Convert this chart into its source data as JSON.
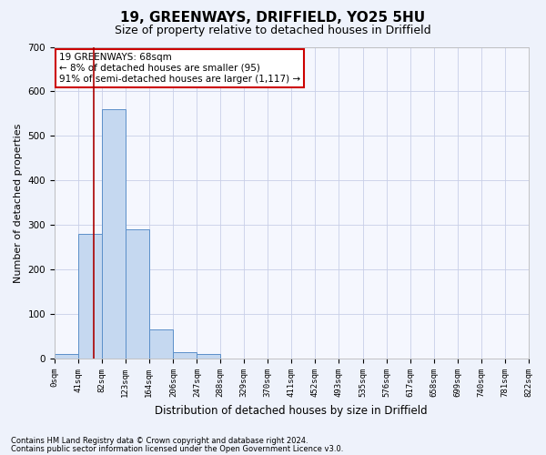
{
  "title1": "19, GREENWAYS, DRIFFIELD, YO25 5HU",
  "title2": "Size of property relative to detached houses in Driffield",
  "xlabel": "Distribution of detached houses by size in Driffield",
  "ylabel": "Number of detached properties",
  "bin_edges": [
    0,
    41,
    82,
    123,
    164,
    206,
    247,
    288,
    329,
    370,
    411,
    452,
    493,
    535,
    576,
    617,
    658,
    699,
    740,
    781,
    822
  ],
  "bar_heights": [
    10,
    280,
    560,
    290,
    65,
    15,
    10,
    0,
    0,
    0,
    0,
    0,
    0,
    0,
    0,
    0,
    0,
    0,
    0,
    0
  ],
  "bar_color": "#c5d8f0",
  "bar_edge_color": "#5b8fc9",
  "red_line_x": 68,
  "ylim": [
    0,
    700
  ],
  "annotation_text": "19 GREENWAYS: 68sqm\n← 8% of detached houses are smaller (95)\n91% of semi-detached houses are larger (1,117) →",
  "annotation_box_color": "#ffffff",
  "annotation_box_edge": "#cc0000",
  "footnote1": "Contains HM Land Registry data © Crown copyright and database right 2024.",
  "footnote2": "Contains public sector information licensed under the Open Government Licence v3.0.",
  "bg_color": "#eef2fb",
  "plot_bg_color": "#f5f7fe",
  "grid_color": "#c8cfe8",
  "title1_fontsize": 11,
  "title2_fontsize": 9,
  "ylabel_fontsize": 8,
  "xlabel_fontsize": 8.5,
  "tick_fontsize": 6.5,
  "annot_fontsize": 7.5,
  "footnote_fontsize": 6
}
